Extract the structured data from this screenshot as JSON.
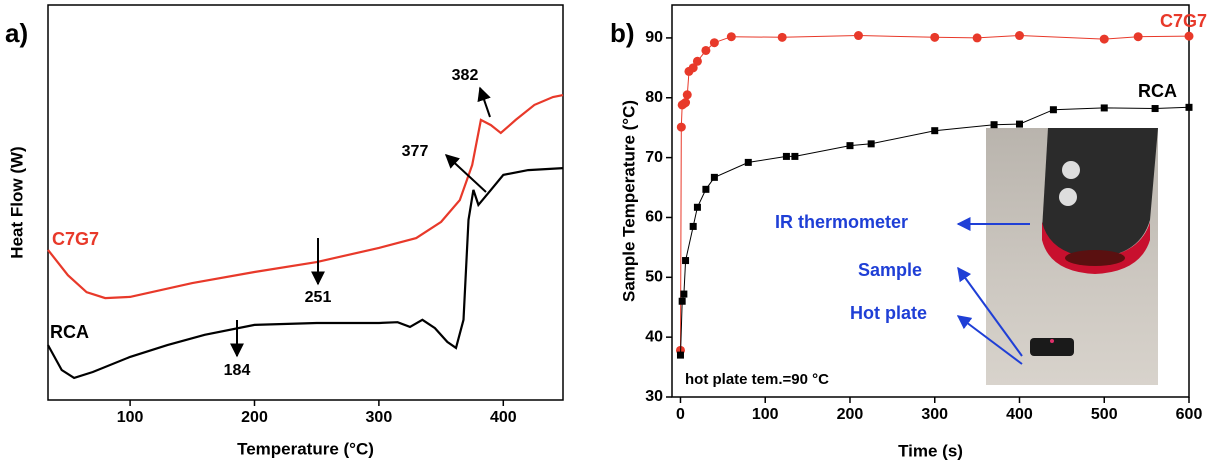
{
  "chart_data": [
    {
      "type": "line",
      "panel_label": "a)",
      "x_label": "Temperature (°C)",
      "y_label": "Heat Flow (W)",
      "xlim": [
        34,
        448
      ],
      "xticks": [
        100,
        200,
        300,
        400
      ],
      "ylim": [
        0,
        100
      ],
      "series": [
        {
          "name": "C7G7",
          "color": "#e8392a",
          "x": [
            34,
            50,
            65,
            80,
            100,
            150,
            200,
            250,
            300,
            330,
            350,
            365,
            375,
            382,
            390,
            398,
            410,
            425,
            440,
            448
          ],
          "values": [
            38.0,
            31.6,
            27.3,
            25.8,
            26.1,
            29.6,
            32.4,
            34.9,
            38.5,
            41.0,
            45.1,
            50.6,
            59.5,
            70.9,
            69.6,
            67.6,
            70.9,
            74.7,
            76.7,
            77.2
          ]
        },
        {
          "name": "RCA",
          "color": "#000000",
          "x": [
            34,
            45,
            55,
            70,
            100,
            130,
            160,
            200,
            250,
            300,
            315,
            325,
            335,
            345,
            355,
            362,
            368,
            372,
            376,
            380,
            390,
            400,
            420,
            448
          ],
          "values": [
            13.9,
            7.6,
            5.6,
            7.1,
            10.9,
            13.9,
            16.5,
            19.0,
            19.5,
            19.5,
            19.7,
            18.5,
            20.3,
            18.2,
            14.7,
            13.2,
            20.3,
            45.6,
            53.2,
            49.4,
            53.2,
            57.0,
            58.2,
            58.7
          ]
        }
      ],
      "annotations": [
        "382",
        "377",
        "251",
        "184"
      ]
    },
    {
      "type": "line",
      "panel_label": "b)",
      "x_label": "Time (s)",
      "y_label": "Sample Temperature (°C)",
      "xlim": [
        -10,
        600
      ],
      "xticks": [
        0,
        100,
        200,
        300,
        400,
        500,
        600
      ],
      "ylim": [
        30,
        95.5
      ],
      "yticks": [
        30,
        40,
        50,
        60,
        70,
        80,
        90
      ],
      "series": [
        {
          "name": "C7G7",
          "color": "#e8392a",
          "marker": "circle",
          "x": [
            0,
            1,
            2,
            4,
            6,
            8,
            10,
            15,
            20,
            30,
            40,
            60,
            120,
            210,
            300,
            350,
            400,
            500,
            540,
            600
          ],
          "values": [
            37.8,
            75.1,
            78.8,
            79,
            79.2,
            80.5,
            84.4,
            85,
            86.1,
            87.9,
            89.2,
            90.2,
            90.1,
            90.4,
            90.1,
            90,
            90.4,
            89.8,
            90.2,
            90.3
          ]
        },
        {
          "name": "RCA",
          "color": "#000000",
          "marker": "square",
          "x": [
            0,
            2,
            4,
            6,
            15,
            20,
            30,
            40,
            80,
            125,
            135,
            200,
            225,
            300,
            370,
            400,
            440,
            500,
            560,
            600
          ],
          "values": [
            37,
            46,
            47.2,
            52.8,
            58.5,
            61.7,
            64.7,
            66.7,
            69.2,
            70.2,
            70.2,
            72,
            72.3,
            74.5,
            75.5,
            75.6,
            78,
            78.3,
            78.2,
            78.4
          ]
        }
      ],
      "annotations": [
        "hot plate tem.=90 °C",
        "IR thermometer",
        "Sample",
        "Hot plate"
      ]
    }
  ]
}
